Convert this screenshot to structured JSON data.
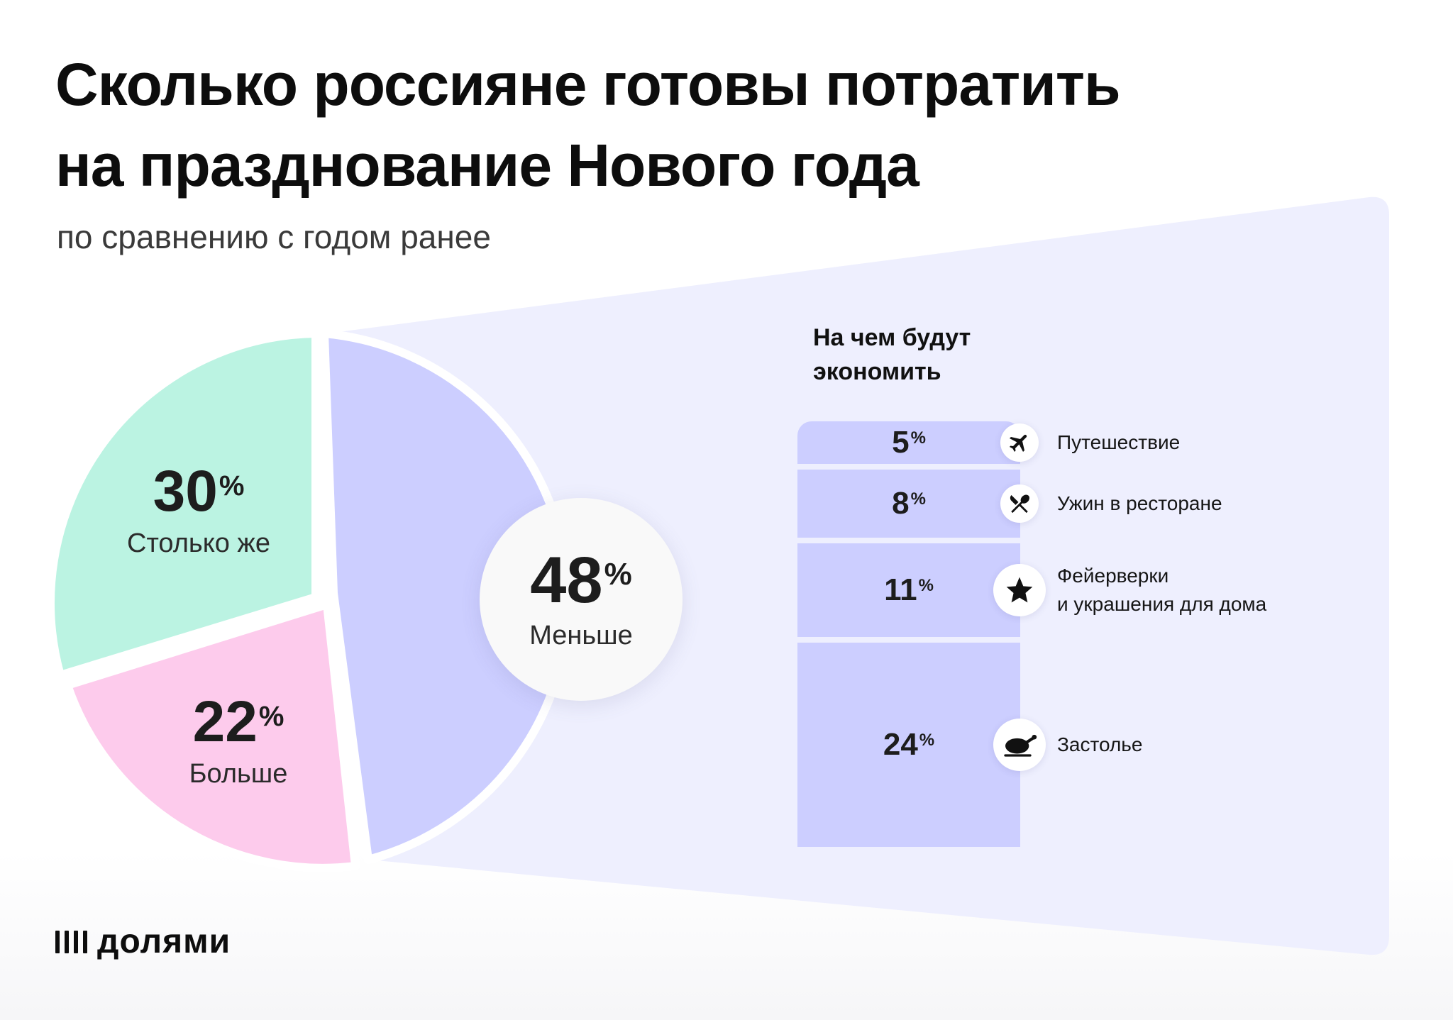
{
  "title_lines": [
    "Сколько россияне готовы потратить",
    "на празднование Нового года"
  ],
  "subtitle": "по сравнению с годом ранее",
  "pct_sign": "%",
  "colors": {
    "same": "#bbf3e2",
    "more": "#fdcbec",
    "less": "#ccceff",
    "panel": "#eeeffe",
    "bars": "#ccceff"
  },
  "chart_data": [
    {
      "type": "pie",
      "slices": [
        {
          "key": "same",
          "label": "Столько же",
          "value": 30
        },
        {
          "key": "more",
          "label": "Больше",
          "value": 22
        },
        {
          "key": "less",
          "label": "Меньше",
          "value": 48
        }
      ],
      "value_labels": [
        "30",
        "22",
        "48"
      ]
    },
    {
      "type": "bar",
      "orientation": "stacked-vertical",
      "title_lines": [
        "На чем будут",
        "экономить"
      ],
      "categories": [
        "Путешествие",
        "Ужин в ресторане",
        "Фейерверки и украшения для дома",
        "Застолье"
      ],
      "category_lines": [
        [
          "Путешествие"
        ],
        [
          "Ужин в ресторане"
        ],
        [
          "Фейерверки",
          "и украшения для дома"
        ],
        [
          "Застолье"
        ]
      ],
      "values": [
        5,
        8,
        11,
        24
      ],
      "value_labels": [
        "5",
        "8",
        "11",
        "24"
      ],
      "icons": [
        "airplane-icon",
        "cutlery-icon",
        "star-icon",
        "roast-chicken-icon"
      ]
    }
  ],
  "logo": {
    "text": "долями",
    "icon": "four-bars-icon"
  }
}
